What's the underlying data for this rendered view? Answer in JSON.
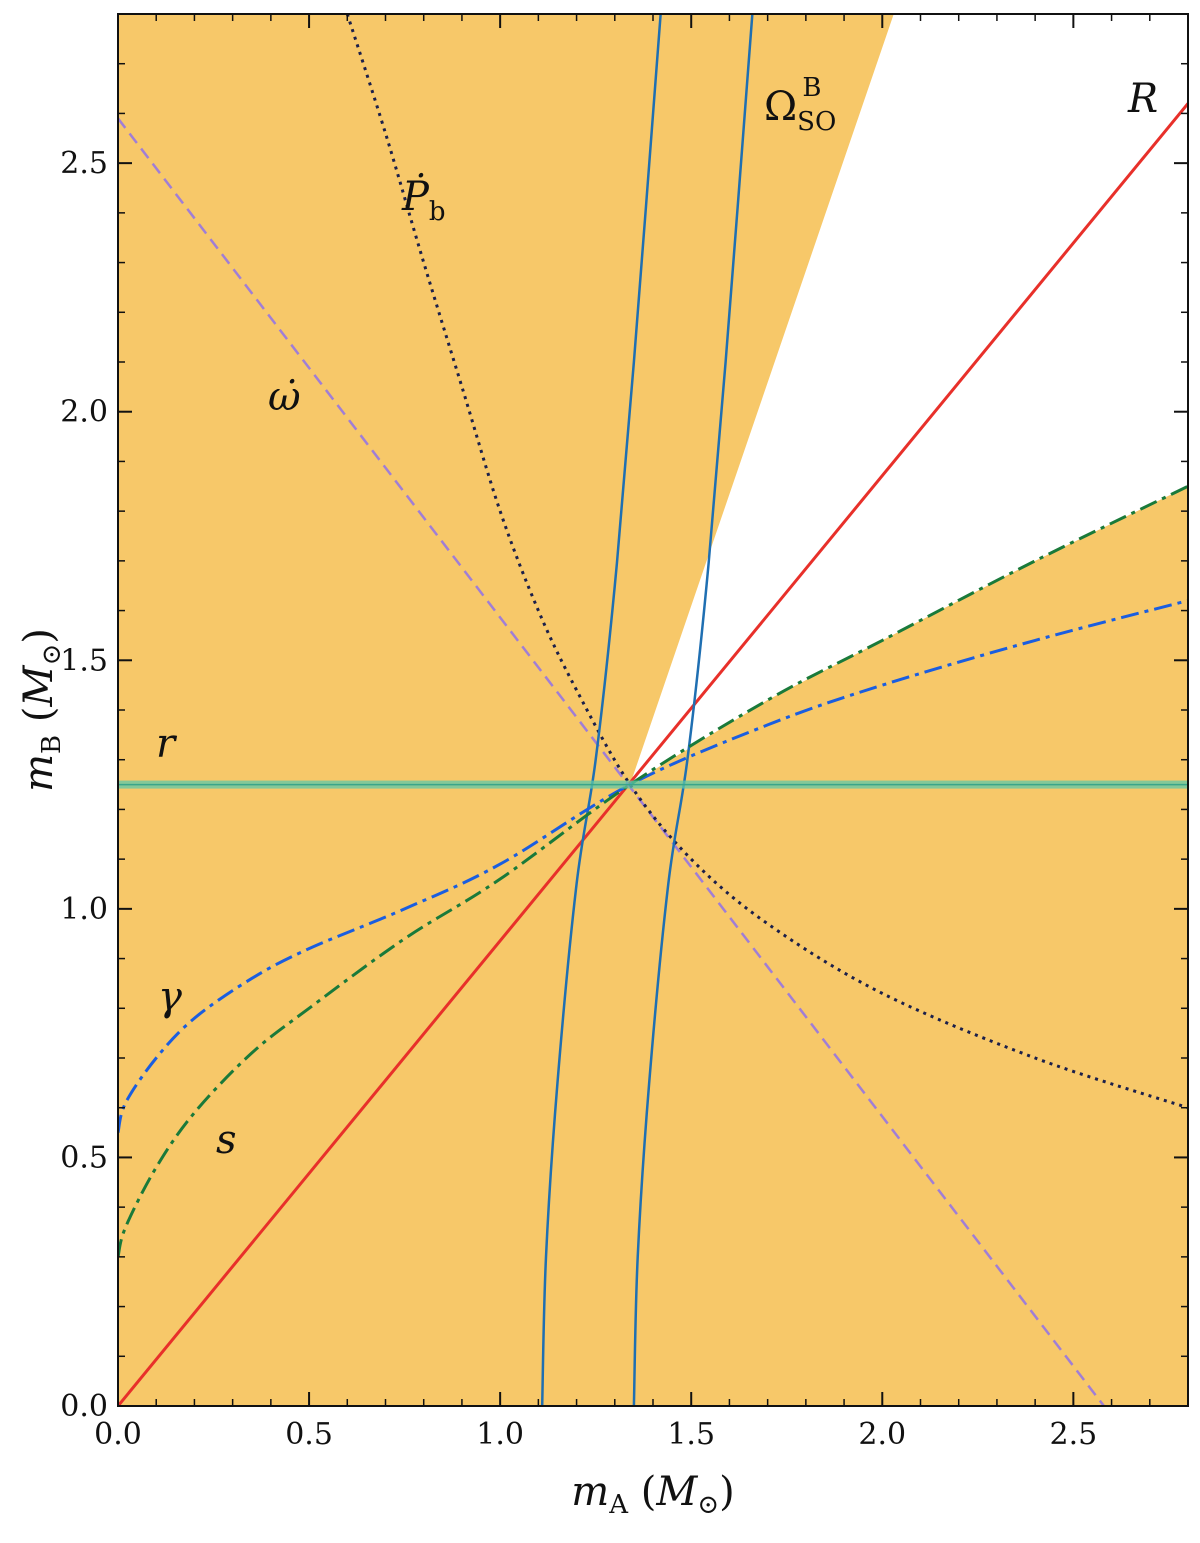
{
  "chart_data": {
    "type": "line",
    "xlabel": "m_A (M_⊙)",
    "ylabel": "m_B (M_⊙)",
    "xlim": [
      0.0,
      2.8
    ],
    "ylim": [
      0.0,
      2.8
    ],
    "xticks": [
      "0.0",
      "0.5",
      "1.0",
      "1.5",
      "2.0",
      "2.5"
    ],
    "yticks": [
      "0.0",
      "0.5",
      "1.0",
      "1.5",
      "2.0",
      "2.5"
    ],
    "grid": false,
    "colors": {
      "fill": "#f7c869",
      "R": "#e8302a",
      "omega_dot": "#a07ed6",
      "Pb_dot": "#1b1f4a",
      "Omega_SO": "#1f6fb2",
      "gamma": "#1a5ee0",
      "s": "#1a7a3a",
      "r": "#5ec8a8"
    },
    "labels": {
      "R": "R",
      "omega_dot": "ω̇",
      "Pb_dot": "Ṗb",
      "Omega_SO": "ΩSO",
      "r": "r",
      "gamma": "γ",
      "s": "s"
    },
    "series": [
      {
        "key": "R",
        "style": "solid",
        "x": [
          0.0,
          2.8
        ],
        "y": [
          0.0,
          2.62
        ]
      },
      {
        "key": "omega_dot",
        "style": "dashed",
        "x": [
          0.0,
          2.58
        ],
        "y": [
          2.59,
          0.0
        ]
      },
      {
        "key": "Pb_dot",
        "style": "dotted",
        "x": [
          0.6,
          0.7,
          0.8,
          0.9,
          1.0,
          1.1,
          1.2,
          1.34,
          1.5,
          1.7,
          2.0,
          2.4,
          2.8
        ],
        "y": [
          2.8,
          2.56,
          2.3,
          2.05,
          1.8,
          1.6,
          1.44,
          1.25,
          1.1,
          0.97,
          0.83,
          0.7,
          0.6
        ]
      },
      {
        "key": "Omega_SO_1",
        "style": "solid",
        "x": [
          1.11,
          1.12,
          1.15,
          1.2,
          1.25,
          1.3,
          1.35,
          1.42
        ],
        "y": [
          0.0,
          0.3,
          0.65,
          1.05,
          1.3,
          1.65,
          2.1,
          2.8
        ]
      },
      {
        "key": "Omega_SO_2",
        "style": "solid",
        "x": [
          1.35,
          1.36,
          1.39,
          1.44,
          1.49,
          1.54,
          1.59,
          1.66
        ],
        "y": [
          0.0,
          0.3,
          0.65,
          1.05,
          1.3,
          1.65,
          2.1,
          2.8
        ]
      },
      {
        "key": "gamma",
        "style": "dashdot",
        "x": [
          0.0,
          0.02,
          0.1,
          0.2,
          0.35,
          0.5,
          0.75,
          1.0,
          1.34,
          1.7,
          2.0,
          2.4,
          2.8
        ],
        "y": [
          0.55,
          0.61,
          0.7,
          0.78,
          0.86,
          0.92,
          1.0,
          1.09,
          1.25,
          1.37,
          1.45,
          1.54,
          1.62
        ]
      },
      {
        "key": "s",
        "style": "dashdot",
        "x": [
          0.0,
          0.02,
          0.1,
          0.2,
          0.35,
          0.5,
          0.75,
          1.0,
          1.34,
          1.7,
          2.0,
          2.4,
          2.8
        ],
        "y": [
          0.3,
          0.36,
          0.48,
          0.59,
          0.71,
          0.8,
          0.94,
          1.06,
          1.25,
          1.42,
          1.54,
          1.7,
          1.85
        ]
      },
      {
        "key": "r",
        "style": "band",
        "x": [
          0.0,
          2.8
        ],
        "y": [
          1.25,
          1.25
        ]
      }
    ]
  }
}
